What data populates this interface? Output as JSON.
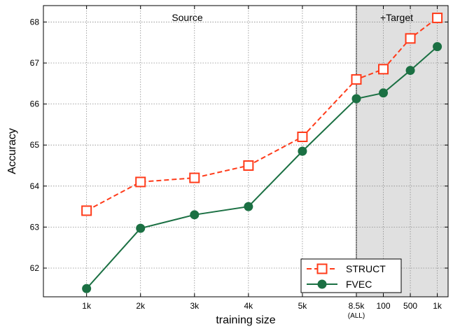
{
  "chart_data": {
    "type": "line",
    "title": "",
    "xlabel": "training size",
    "ylabel": "Accuracy",
    "categories": [
      "1k",
      "2k",
      "3k",
      "4k",
      "5k",
      "8.5k",
      "100",
      "500",
      "1k"
    ],
    "category_sublabels": [
      "",
      "",
      "",
      "",
      "",
      "(ALL)",
      "",
      "",
      ""
    ],
    "x_positions": [
      1,
      2,
      3,
      4,
      5,
      6,
      6.5,
      7,
      7.5
    ],
    "xlim": [
      0.2,
      7.7
    ],
    "ylim": [
      61.3,
      68.4
    ],
    "yticks": [
      62,
      63,
      64,
      65,
      66,
      67,
      68
    ],
    "grid": true,
    "regions": [
      {
        "label": "Source",
        "x_start": 0.2,
        "x_end": 6,
        "shaded": false
      },
      {
        "label": "+Target",
        "x_start": 6,
        "x_end": 7.7,
        "shaded": true,
        "color": "#e0e0e0"
      }
    ],
    "legend_position": "bottom-right",
    "series": [
      {
        "name": "STRUCT",
        "color": "#ff3b1a",
        "marker": "open-square",
        "line_style": "dashed",
        "values": [
          63.4,
          64.1,
          64.2,
          64.5,
          65.2,
          66.6,
          66.85,
          67.6,
          68.1
        ]
      },
      {
        "name": "FVEC",
        "color": "#1b7043",
        "marker": "filled-circle",
        "line_style": "solid",
        "values": [
          61.5,
          62.97,
          63.3,
          63.5,
          64.85,
          66.13,
          66.27,
          66.82,
          67.4
        ]
      }
    ]
  }
}
